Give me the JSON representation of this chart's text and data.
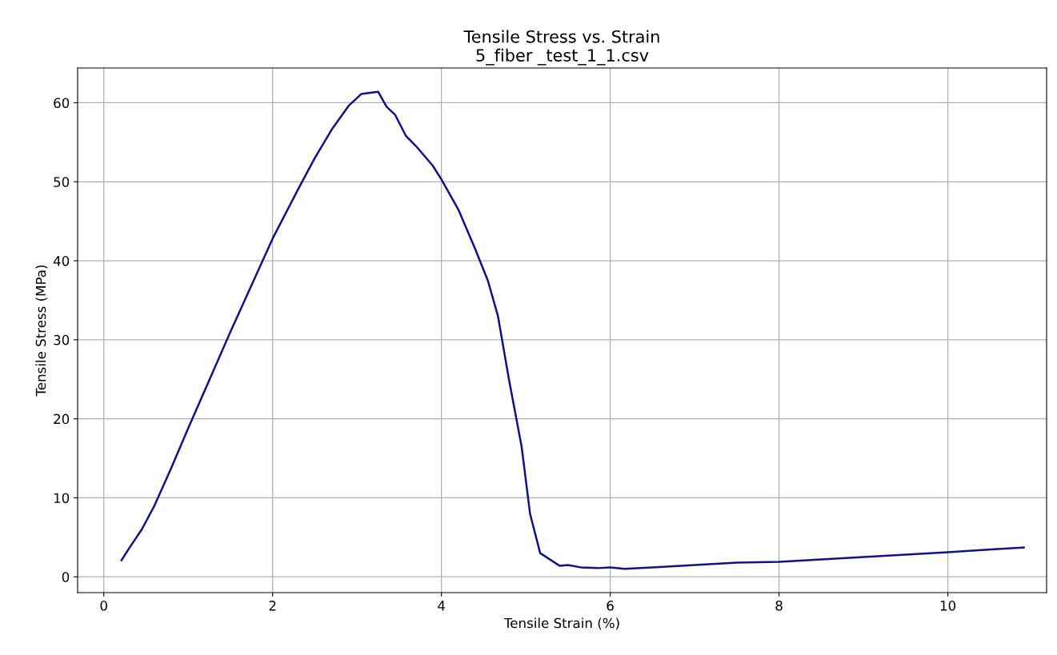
{
  "chart_data": {
    "type": "line",
    "title": "Tensile Stress vs. Strain\n5_fiber _test_1_1.csv",
    "xlabel": "Tensile Strain (%)",
    "ylabel": "Tensile Stress (MPa)",
    "xlim": [
      -0.31,
      11.17
    ],
    "ylim": [
      -2.0,
      64.4
    ],
    "xticks": [
      0,
      2,
      4,
      6,
      8,
      10
    ],
    "yticks": [
      0,
      10,
      20,
      30,
      40,
      50,
      60
    ],
    "grid": true,
    "line_style": "solid",
    "series": [
      {
        "color": "#11118a",
        "x": [
          0.21,
          0.3,
          0.45,
          0.6,
          0.8,
          1.0,
          1.5,
          2.0,
          2.3,
          2.5,
          2.7,
          2.9,
          3.05,
          3.25,
          3.35,
          3.45,
          3.58,
          3.7,
          3.9,
          4.0,
          4.2,
          4.4,
          4.55,
          4.67,
          4.8,
          4.95,
          5.05,
          5.17,
          5.4,
          5.5,
          5.65,
          5.85,
          6.0,
          6.17,
          6.5,
          7.0,
          7.5,
          8.0,
          8.5,
          9.0,
          9.5,
          10.0,
          10.4,
          10.9
        ],
        "values": [
          2.1,
          3.6,
          6.0,
          9.0,
          13.8,
          18.8,
          31.0,
          42.8,
          49.0,
          53.0,
          56.6,
          59.6,
          61.1,
          61.4,
          59.5,
          58.5,
          55.8,
          54.5,
          52.0,
          50.3,
          46.5,
          41.5,
          37.5,
          33.0,
          25.0,
          16.5,
          8.0,
          3.0,
          1.4,
          1.5,
          1.2,
          1.1,
          1.2,
          1.0,
          1.2,
          1.5,
          1.8,
          1.9,
          2.2,
          2.5,
          2.8,
          3.1,
          3.4,
          3.7
        ]
      }
    ]
  }
}
